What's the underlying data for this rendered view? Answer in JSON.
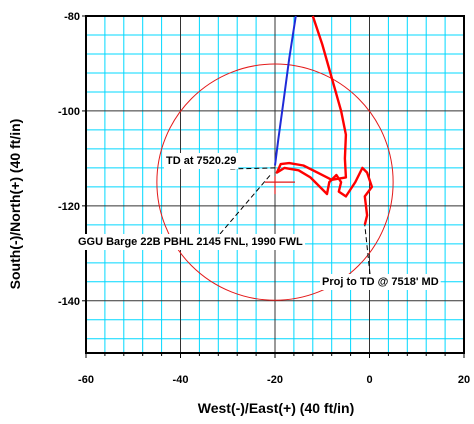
{
  "chart_data": {
    "type": "line",
    "xlabel": "West(-)/East(+) (40 ft/in)",
    "ylabel": "South(-)/North(+) (40 ft/in)",
    "xlim": [
      -60,
      20
    ],
    "ylim": [
      -151,
      -80
    ],
    "x_ticks": [
      -60,
      -40,
      -20,
      0,
      20
    ],
    "x_tick_labels": [
      "-60",
      "-40",
      "-20",
      "0",
      "20"
    ],
    "y_ticks": [
      -80,
      -100,
      -120,
      -140
    ],
    "y_tick_labels": [
      "-80",
      "-100",
      "-120",
      "-140"
    ],
    "minor_grid_x_step": 4,
    "minor_grid_y_step": 4,
    "grid": true,
    "minor_grid_color": "#00d8ff",
    "major_grid_color": "#333333",
    "series": [
      {
        "color": "#1f2bd8",
        "points": [
          [
            -20,
            -111.5
          ],
          [
            -19.3,
            -106
          ],
          [
            -18.2,
            -98
          ],
          [
            -17,
            -89
          ],
          [
            -15.6,
            -80
          ]
        ]
      },
      {
        "color": "#ff0000",
        "points": [
          [
            -12,
            -80
          ],
          [
            -10,
            -86
          ],
          [
            -8,
            -93
          ],
          [
            -6,
            -100
          ],
          [
            -5,
            -105
          ],
          [
            -5.2,
            -110
          ],
          [
            -5,
            -114
          ],
          [
            -8,
            -114.5
          ],
          [
            -11,
            -113
          ],
          [
            -14,
            -111.5
          ],
          [
            -17,
            -111
          ],
          [
            -18.8,
            -111.2
          ],
          [
            -19.6,
            -113
          ],
          [
            -18,
            -112
          ],
          [
            -15,
            -112.5
          ],
          [
            -12.5,
            -114
          ],
          [
            -10.5,
            -116
          ],
          [
            -9,
            -117.5
          ],
          [
            -8.5,
            -115
          ],
          [
            -7,
            -113.5
          ],
          [
            -6,
            -115
          ],
          [
            -6.5,
            -117
          ],
          [
            -5,
            -118
          ],
          [
            -3,
            -115
          ],
          [
            -1.5,
            -112
          ],
          [
            -0.5,
            -113
          ],
          [
            0.5,
            -116
          ],
          [
            -1,
            -118
          ],
          [
            -0.5,
            -122
          ],
          [
            -1,
            -124
          ]
        ]
      }
    ],
    "target_circle": {
      "cx": -20,
      "cy": -115,
      "r": 25,
      "color": "#e31a1a"
    },
    "crosshair": {
      "x": -20,
      "y": -115
    },
    "annotations": [
      {
        "text": "TD at 7520.29",
        "anchor": [
          -20,
          -112
        ]
      },
      {
        "text": "GGU Barge 22B PBHL 2145 FNL, 1990 FWL",
        "anchor": [
          -21,
          -113.5
        ]
      },
      {
        "text": "Proj to TD @ 7518' MD",
        "anchor": [
          -1,
          -124
        ]
      }
    ]
  }
}
